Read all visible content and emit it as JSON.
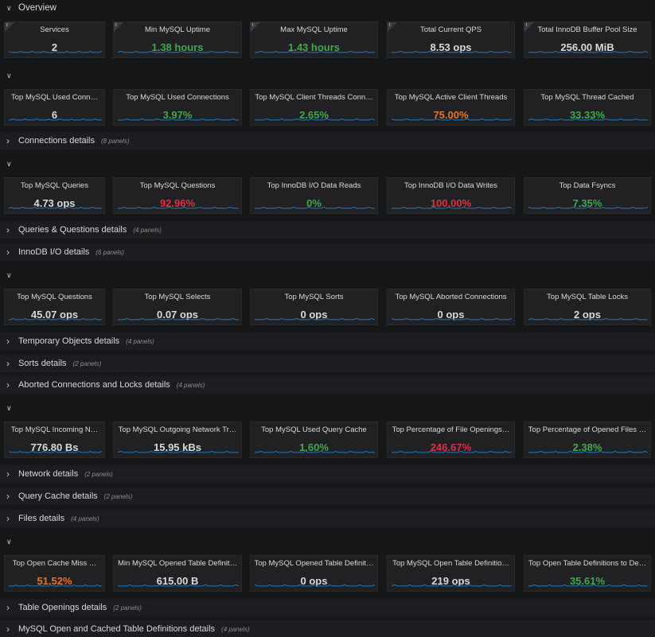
{
  "sections": [
    {
      "title": "Overview",
      "panels": [
        {
          "title": "Services",
          "value": "2",
          "color": "#d8d9da"
        },
        {
          "title": "Min MySQL Uptime",
          "value": "1.38 hours",
          "color": "#3fa94a"
        },
        {
          "title": "Max MySQL Uptime",
          "value": "1.43 hours",
          "color": "#3fa94a"
        },
        {
          "title": "Total Current QPS",
          "value": "8.53 ops",
          "color": "#d8d9da"
        },
        {
          "title": "Total InnoDB Buffer Pool Size",
          "value": "256.00 MiB",
          "color": "#d8d9da"
        }
      ]
    },
    {
      "panels": [
        {
          "title": "Top MySQL Used Conn…",
          "value": "6",
          "color": "#d8d9da"
        },
        {
          "title": "Top MySQL Used Connections",
          "value": "3.97%",
          "color": "#3fa94a"
        },
        {
          "title": "Top MySQL Client Threads Conn…",
          "value": "2.65%",
          "color": "#3fa94a"
        },
        {
          "title": "Top MySQL Active Client Threads",
          "value": "75.00%",
          "color": "#e0752d"
        },
        {
          "title": "Top MySQL Thread Cached",
          "value": "33.33%",
          "color": "#3fa94a"
        }
      ]
    },
    {
      "title": "Connections details",
      "note": "(8 panels)"
    },
    {
      "panels": [
        {
          "title": "Top MySQL Queries",
          "value": "4.73 ops",
          "color": "#d8d9da"
        },
        {
          "title": "Top MySQL Questions",
          "value": "92.96%",
          "color": "#e02f44"
        },
        {
          "title": "Top InnoDB I/O Data Reads",
          "value": "0%",
          "color": "#3fa94a"
        },
        {
          "title": "Top InnoDB I/O Data Writes",
          "value": "100.00%",
          "color": "#e02f44"
        },
        {
          "title": "Top Data Fsyncs",
          "value": "7.35%",
          "color": "#3fa94a"
        }
      ]
    },
    {
      "title": "Queries & Questions details",
      "note": "(4 panels)"
    },
    {
      "title": "InnoDB I/O details",
      "note": "(6 panels)"
    },
    {
      "panels": [
        {
          "title": "Top MySQL Questions",
          "value": "45.07 ops",
          "color": "#d8d9da"
        },
        {
          "title": "Top MySQL Selects",
          "value": "0.07 ops",
          "color": "#d8d9da"
        },
        {
          "title": "Top MySQL Sorts",
          "value": "0 ops",
          "color": "#d8d9da"
        },
        {
          "title": "Top MySQL Aborted Connections",
          "value": "0 ops",
          "color": "#d8d9da"
        },
        {
          "title": "Top MySQL Table Locks",
          "value": "2 ops",
          "color": "#d8d9da"
        }
      ]
    },
    {
      "title": "Temporary Objects details",
      "note": "(4 panels)"
    },
    {
      "title": "Sorts details",
      "note": "(2 panels)"
    },
    {
      "title": "Aborted Connections and Locks details",
      "note": "(4 panels)"
    },
    {
      "panels": [
        {
          "title": "Top MySQL Incoming N…",
          "value": "776.80 Bs",
          "color": "#d8d9da"
        },
        {
          "title": "Top MySQL Outgoing Network Tr…",
          "value": "15.95 kBs",
          "color": "#d8d9da"
        },
        {
          "title": "Top MySQL Used Query Cache",
          "value": "1.60%",
          "color": "#3fa94a"
        },
        {
          "title": "Top Percentage of File Openings…",
          "value": "246.67%",
          "color": "#e02f44"
        },
        {
          "title": "Top Percentage of Opened Files …",
          "value": "2.38%",
          "color": "#3fa94a"
        }
      ]
    },
    {
      "title": "Network details",
      "note": "(2 panels)"
    },
    {
      "title": "Query Cache details",
      "note": "(2 panels)"
    },
    {
      "title": "Files details",
      "note": "(4 panels)"
    },
    {
      "panels": [
        {
          "title": "Top Open Cache Miss …",
          "value": "51.52%",
          "color": "#e0752d"
        },
        {
          "title": "Min MySQL Opened Table Definit…",
          "value": "615.00 B",
          "color": "#d8d9da"
        },
        {
          "title": "Top MySQL Opened Table Definit…",
          "value": "0 ops",
          "color": "#d8d9da"
        },
        {
          "title": "Top MySQL Open Table Definitio…",
          "value": "219 ops",
          "color": "#d8d9da"
        },
        {
          "title": "Top Open Table Definitions to De…",
          "value": "35.61%",
          "color": "#3fa94a"
        }
      ]
    },
    {
      "title": "Table Openings details",
      "note": "(2 panels)"
    },
    {
      "title": "MySQL Open and Cached Table Definitions details",
      "note": "(4 panels)"
    }
  ]
}
